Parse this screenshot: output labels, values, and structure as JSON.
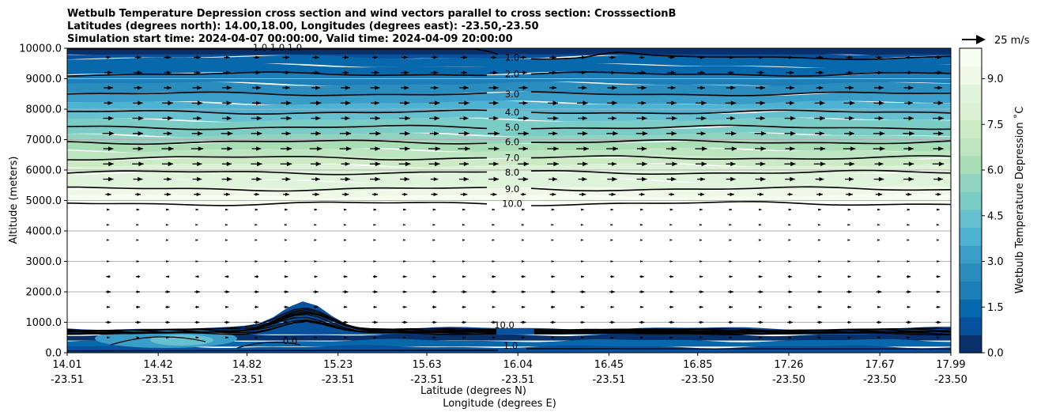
{
  "chart_data": {
    "type": "cross-section-contour",
    "title_lines": [
      "Wetbulb Temperature Depression cross section and wind vectors parallel to cross section: CrosssectionB",
      "Latitudes (degrees north): 14.00,18.00, Longitudes (degrees east): -23.50,-23.50",
      "Simulation start time: 2024-04-07 00:00:00, Valid time: 2024-04-09 20:00:00"
    ],
    "xlabel_lat": "Latitude (degrees N)",
    "xlabel_lon": "Longitude (degrees E)",
    "ylabel": "Altitude (meters)",
    "xlim": [
      14.01,
      17.99
    ],
    "ylim": [
      0,
      10000
    ],
    "x_ticks": [
      {
        "lat": "14.01",
        "lon": "-23.51",
        "x": 14.01
      },
      {
        "lat": "14.42",
        "lon": "-23.51",
        "x": 14.42
      },
      {
        "lat": "14.82",
        "lon": "-23.51",
        "x": 14.82
      },
      {
        "lat": "15.23",
        "lon": "-23.51",
        "x": 15.23
      },
      {
        "lat": "15.63",
        "lon": "-23.51",
        "x": 15.63
      },
      {
        "lat": "16.04",
        "lon": "-23.51",
        "x": 16.04
      },
      {
        "lat": "16.45",
        "lon": "-23.51",
        "x": 16.45
      },
      {
        "lat": "16.85",
        "lon": "-23.50",
        "x": 16.85
      },
      {
        "lat": "17.26",
        "lon": "-23.50",
        "x": 17.26
      },
      {
        "lat": "17.67",
        "lon": "-23.50",
        "x": 17.67
      },
      {
        "lat": "17.99",
        "lon": "-23.50",
        "x": 17.99
      }
    ],
    "y_ticks": [
      {
        "label": "0.0",
        "value": 0
      },
      {
        "label": "1000.0",
        "value": 1000
      },
      {
        "label": "2000.0",
        "value": 2000
      },
      {
        "label": "3000.0",
        "value": 3000
      },
      {
        "label": "4000.0",
        "value": 4000
      },
      {
        "label": "5000.0",
        "value": 5000
      },
      {
        "label": "6000.0",
        "value": 6000
      },
      {
        "label": "7000.0",
        "value": 7000
      },
      {
        "label": "8000.0",
        "value": 8000
      },
      {
        "label": "9000.0",
        "value": 9000
      },
      {
        "label": "10000.0",
        "value": 10000
      }
    ],
    "grid": "horizontal",
    "colorbar": {
      "label": "Wetbulb Temperature Depression ˚C",
      "range": [
        0,
        10
      ],
      "ticks": [
        "0.0",
        "1.5",
        "3.0",
        "4.5",
        "6.0",
        "7.5",
        "9.0"
      ],
      "tick_values": [
        0,
        1.5,
        3,
        4.5,
        6,
        7.5,
        9
      ],
      "colors": [
        "#08306b",
        "#08519c",
        "#0868ac",
        "#1d7eb8",
        "#2b8cbe",
        "#3a9dc8",
        "#4eb3d3",
        "#66c0d0",
        "#7bccc4",
        "#8fd3c0",
        "#a8ddb5",
        "#bce5c0",
        "#ccebc5",
        "#dcf1d6",
        "#e0f3db",
        "#f0f9e8",
        "#f7fcf0"
      ]
    },
    "quiver_key": {
      "label": "25 m/s",
      "speed": 25
    },
    "contour_levels": [
      {
        "label": "1.0",
        "altitude": 9700
      },
      {
        "label": "2.0",
        "altitude": 9150
      },
      {
        "label": "3.0",
        "altitude": 8500
      },
      {
        "label": "4.0",
        "altitude": 7900
      },
      {
        "label": "5.0",
        "altitude": 7400
      },
      {
        "label": "6.0",
        "altitude": 6920
      },
      {
        "label": "7.0",
        "altitude": 6400
      },
      {
        "label": "8.0",
        "altitude": 5920
      },
      {
        "label": "9.0",
        "altitude": 5380
      },
      {
        "label": "10.0",
        "altitude": 4900
      }
    ],
    "low_level_labels": [
      "10.0",
      "1.0",
      "0.0",
      "1.0 1.0 1.0"
    ],
    "wind_levels": [
      {
        "altitude": 9700,
        "speed": 10
      },
      {
        "altitude": 9200,
        "speed": 12
      },
      {
        "altitude": 8700,
        "speed": 14
      },
      {
        "altitude": 8200,
        "speed": 16
      },
      {
        "altitude": 7700,
        "speed": 16
      },
      {
        "altitude": 7200,
        "speed": 17
      },
      {
        "altitude": 6700,
        "speed": 18
      },
      {
        "altitude": 6200,
        "speed": 17
      },
      {
        "altitude": 5700,
        "speed": 15
      },
      {
        "altitude": 5200,
        "speed": 10
      },
      {
        "altitude": 4700,
        "speed": 4
      },
      {
        "altitude": 4200,
        "speed": 2
      },
      {
        "altitude": 3700,
        "speed": 2
      },
      {
        "altitude": 3000,
        "speed": 3
      },
      {
        "altitude": 2500,
        "speed": 6
      },
      {
        "altitude": 2000,
        "speed": 8
      },
      {
        "altitude": 1500,
        "speed": 6
      },
      {
        "altitude": 1000,
        "speed": 8
      },
      {
        "altitude": 500,
        "speed": 4
      }
    ]
  }
}
